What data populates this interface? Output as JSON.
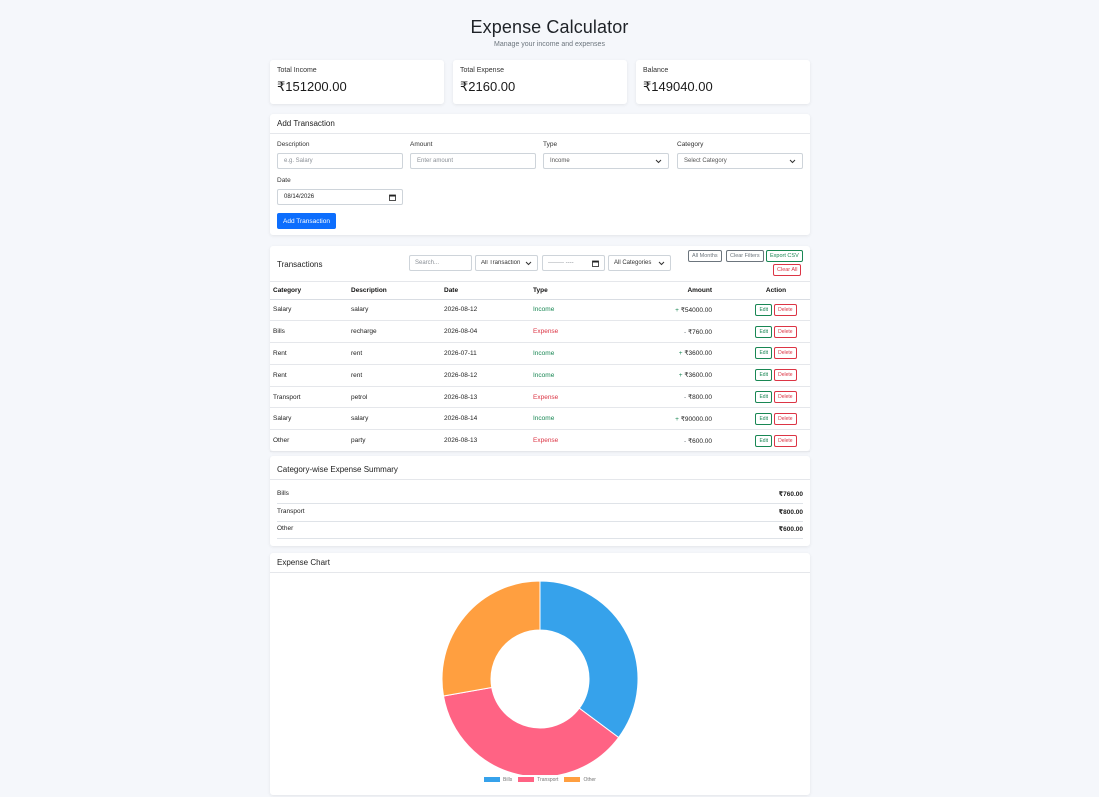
{
  "header": {
    "title": "Expense Calculator",
    "subtitle": "Manage your income and expenses"
  },
  "summary_cards": [
    {
      "label": "Total Income",
      "value": "₹151200.00"
    },
    {
      "label": "Total Expense",
      "value": "₹2160.00"
    },
    {
      "label": "Balance",
      "value": "₹149040.00"
    }
  ],
  "add_form": {
    "title": "Add Transaction",
    "description_label": "Description",
    "description_placeholder": "e.g. Salary",
    "amount_label": "Amount",
    "amount_placeholder": "Enter amount",
    "type_label": "Type",
    "type_value": "Income",
    "category_label": "Category",
    "category_value": "Select Category",
    "date_label": "Date",
    "date_value": "08/14/2026",
    "submit_label": "Add Transaction"
  },
  "transactions": {
    "title": "Transactions",
    "search_placeholder": "Search...",
    "type_filter": "All Transaction",
    "month_filter": "-------- ----",
    "category_filter": "All Categories",
    "all_months": "All Months",
    "clear_filters": "Clear Filters",
    "export_csv": "Export CSV",
    "clear_all": "Clear All",
    "columns": [
      "Category",
      "Description",
      "Date",
      "Type",
      "Amount",
      "Action"
    ],
    "edit_label": "Edit",
    "delete_label": "Delete",
    "rows": [
      {
        "category": "Salary",
        "description": "salary",
        "date": "2026-08-12",
        "type": "Income",
        "sign": "+",
        "amount": "₹54000.00"
      },
      {
        "category": "Bills",
        "description": "recharge",
        "date": "2026-08-04",
        "type": "Expense",
        "sign": "-",
        "amount": "₹760.00"
      },
      {
        "category": "Rent",
        "description": "rent",
        "date": "2026-07-11",
        "type": "Income",
        "sign": "+",
        "amount": "₹3600.00"
      },
      {
        "category": "Rent",
        "description": "rent",
        "date": "2026-08-12",
        "type": "Income",
        "sign": "+",
        "amount": "₹3600.00"
      },
      {
        "category": "Transport",
        "description": "petrol",
        "date": "2026-08-13",
        "type": "Expense",
        "sign": "-",
        "amount": "₹800.00"
      },
      {
        "category": "Salary",
        "description": "salary",
        "date": "2026-08-14",
        "type": "Income",
        "sign": "+",
        "amount": "₹90000.00"
      },
      {
        "category": "Other",
        "description": "party",
        "date": "2026-08-13",
        "type": "Expense",
        "sign": "-",
        "amount": "₹600.00"
      }
    ]
  },
  "category_summary": {
    "title": "Category-wise Expense Summary",
    "items": [
      {
        "name": "Bills",
        "amount": "₹760.00"
      },
      {
        "name": "Transport",
        "amount": "₹800.00"
      },
      {
        "name": "Other",
        "amount": "₹600.00"
      }
    ]
  },
  "chart_panel": {
    "title": "Expense Chart"
  },
  "chart_data": {
    "type": "pie",
    "donut": true,
    "categories": [
      "Bills",
      "Transport",
      "Other"
    ],
    "values": [
      760,
      800,
      600
    ],
    "colors": [
      "#36a2eb",
      "#ff6384",
      "#ff9f40"
    ],
    "legend": "bottom"
  },
  "colors": {
    "primary": "#0d6efd",
    "income": "#198754",
    "expense": "#dc3545",
    "background": "#f5f7fb"
  }
}
